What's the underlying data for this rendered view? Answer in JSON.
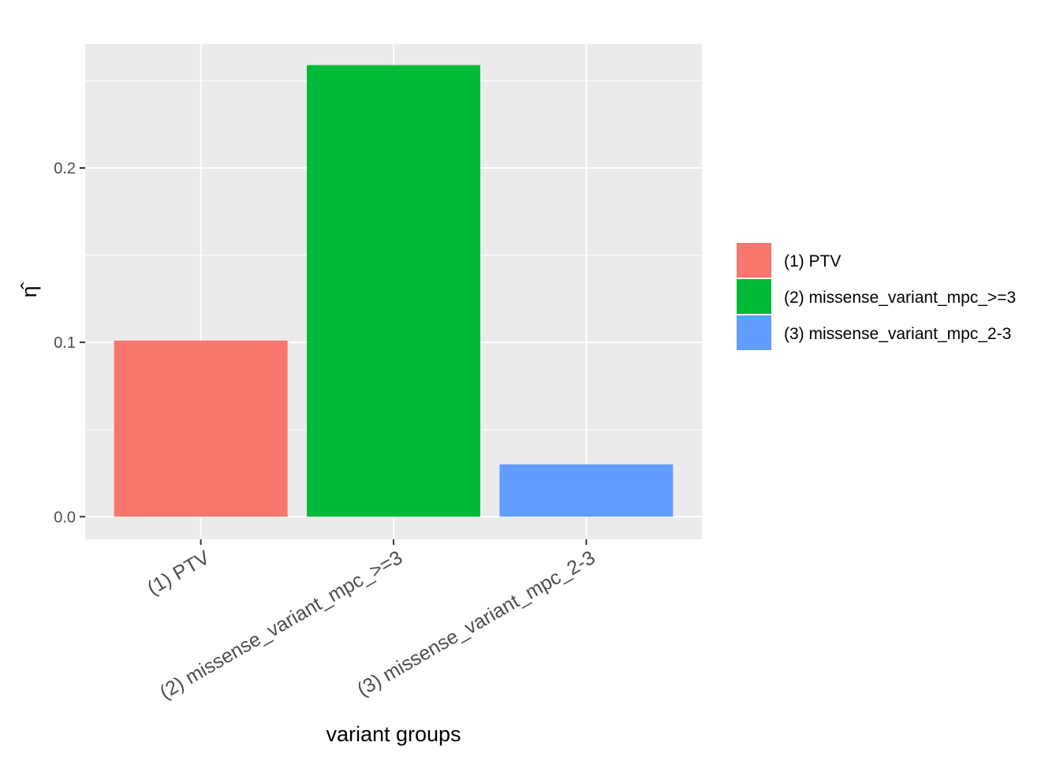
{
  "chart_data": {
    "type": "bar",
    "categories": [
      "(1) PTV",
      "(2) missense_variant_mpc_>=3",
      "(3) missense_variant_mpc_2-3"
    ],
    "values": [
      0.101,
      0.259,
      0.03
    ],
    "colors": [
      "#F8766D",
      "#00BA38",
      "#619CFF"
    ],
    "xlabel": "variant groups",
    "ylabel": "η̂",
    "ylim": [
      -0.013,
      0.271
    ],
    "yticks": [
      0.0,
      0.1,
      0.2
    ],
    "ytick_labels": [
      "0.0",
      "0.1",
      "0.2"
    ],
    "grid": true,
    "panel_background": "#EBEBEB",
    "legend": {
      "position": "right",
      "entries": [
        "(1) PTV",
        "(2) missense_variant_mpc_>=3",
        "(3) missense_variant_mpc_2-3"
      ]
    }
  }
}
